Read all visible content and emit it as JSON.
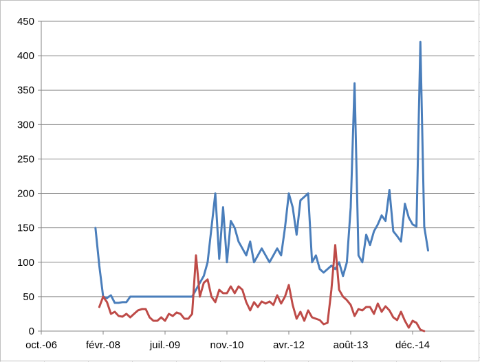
{
  "chart_data": {
    "type": "line",
    "title": "",
    "xlabel": "",
    "ylabel": "",
    "ylim": [
      0,
      450
    ],
    "y_ticks": [
      0,
      50,
      100,
      150,
      200,
      250,
      300,
      350,
      400,
      450
    ],
    "x_tick_labels": [
      "oct.-06",
      "févr.-08",
      "juil.-09",
      "nov.-10",
      "avr.-12",
      "août-13",
      "déc.-14"
    ],
    "x_tick_dates": [
      "2006-10",
      "2008-02",
      "2009-07",
      "2010-11",
      "2012-04",
      "2013-08",
      "2014-12"
    ],
    "grid": "horizontal",
    "legend": "none",
    "series": [
      {
        "color": "#4a7ebb",
        "points": [
          [
            "2007-12",
            150
          ],
          [
            "2008-01",
            95
          ],
          [
            "2008-02",
            50
          ],
          [
            "2008-03",
            48
          ],
          [
            "2008-04",
            52
          ],
          [
            "2008-05",
            41
          ],
          [
            "2008-06",
            41
          ],
          [
            "2008-07",
            42
          ],
          [
            "2008-08",
            42
          ],
          [
            "2008-09",
            50
          ],
          [
            "2008-10",
            50
          ],
          [
            "2008-11",
            50
          ],
          [
            "2008-12",
            50
          ],
          [
            "2009-01",
            50
          ],
          [
            "2009-02",
            50
          ],
          [
            "2009-03",
            50
          ],
          [
            "2009-04",
            50
          ],
          [
            "2009-05",
            50
          ],
          [
            "2009-06",
            50
          ],
          [
            "2009-07",
            50
          ],
          [
            "2009-08",
            50
          ],
          [
            "2009-09",
            50
          ],
          [
            "2009-10",
            50
          ],
          [
            "2009-11",
            50
          ],
          [
            "2009-12",
            50
          ],
          [
            "2010-01",
            50
          ],
          [
            "2010-02",
            60
          ],
          [
            "2010-03",
            70
          ],
          [
            "2010-04",
            80
          ],
          [
            "2010-05",
            100
          ],
          [
            "2010-06",
            150
          ],
          [
            "2010-07",
            200
          ],
          [
            "2010-08",
            105
          ],
          [
            "2010-09",
            180
          ],
          [
            "2010-10",
            100
          ],
          [
            "2010-11",
            160
          ],
          [
            "2010-12",
            150
          ],
          [
            "2011-01",
            130
          ],
          [
            "2011-02",
            120
          ],
          [
            "2011-03",
            110
          ],
          [
            "2011-04",
            130
          ],
          [
            "2011-05",
            100
          ],
          [
            "2011-06",
            110
          ],
          [
            "2011-07",
            120
          ],
          [
            "2011-08",
            110
          ],
          [
            "2011-09",
            100
          ],
          [
            "2011-10",
            110
          ],
          [
            "2011-11",
            120
          ],
          [
            "2011-12",
            110
          ],
          [
            "2012-01",
            150
          ],
          [
            "2012-02",
            200
          ],
          [
            "2012-03",
            180
          ],
          [
            "2012-04",
            140
          ],
          [
            "2012-05",
            190
          ],
          [
            "2012-06",
            195
          ],
          [
            "2012-07",
            200
          ],
          [
            "2012-08",
            100
          ],
          [
            "2012-09",
            110
          ],
          [
            "2012-10",
            90
          ],
          [
            "2012-11",
            85
          ],
          [
            "2012-12",
            90
          ],
          [
            "2013-01",
            95
          ],
          [
            "2013-02",
            90
          ],
          [
            "2013-03",
            100
          ],
          [
            "2013-04",
            80
          ],
          [
            "2013-05",
            100
          ],
          [
            "2013-06",
            180
          ],
          [
            "2013-07",
            360
          ],
          [
            "2013-08",
            110
          ],
          [
            "2013-09",
            100
          ],
          [
            "2013-10",
            140
          ],
          [
            "2013-11",
            125
          ],
          [
            "2013-12",
            145
          ],
          [
            "2014-01",
            155
          ],
          [
            "2014-02",
            168
          ],
          [
            "2014-03",
            160
          ],
          [
            "2014-04",
            205
          ],
          [
            "2014-05",
            145
          ],
          [
            "2014-06",
            138
          ],
          [
            "2014-07",
            130
          ],
          [
            "2014-08",
            185
          ],
          [
            "2014-09",
            165
          ],
          [
            "2014-10",
            155
          ],
          [
            "2014-11",
            152
          ],
          [
            "2014-12",
            420
          ],
          [
            "2015-01",
            152
          ],
          [
            "2015-02",
            117
          ]
        ]
      },
      {
        "color": "#be4b48",
        "points": [
          [
            "2008-01",
            35
          ],
          [
            "2008-02",
            50
          ],
          [
            "2008-03",
            42
          ],
          [
            "2008-04",
            25
          ],
          [
            "2008-05",
            28
          ],
          [
            "2008-06",
            22
          ],
          [
            "2008-07",
            21
          ],
          [
            "2008-08",
            25
          ],
          [
            "2008-09",
            20
          ],
          [
            "2008-10",
            25
          ],
          [
            "2008-11",
            30
          ],
          [
            "2008-12",
            32
          ],
          [
            "2009-01",
            32
          ],
          [
            "2009-02",
            20
          ],
          [
            "2009-03",
            15
          ],
          [
            "2009-04",
            15
          ],
          [
            "2009-05",
            20
          ],
          [
            "2009-06",
            15
          ],
          [
            "2009-07",
            25
          ],
          [
            "2009-08",
            22
          ],
          [
            "2009-09",
            27
          ],
          [
            "2009-10",
            25
          ],
          [
            "2009-11",
            18
          ],
          [
            "2009-12",
            18
          ],
          [
            "2010-01",
            25
          ],
          [
            "2010-02",
            110
          ],
          [
            "2010-03",
            50
          ],
          [
            "2010-04",
            70
          ],
          [
            "2010-05",
            75
          ],
          [
            "2010-06",
            50
          ],
          [
            "2010-07",
            42
          ],
          [
            "2010-08",
            60
          ],
          [
            "2010-09",
            55
          ],
          [
            "2010-10",
            55
          ],
          [
            "2010-11",
            65
          ],
          [
            "2010-12",
            55
          ],
          [
            "2011-01",
            65
          ],
          [
            "2011-02",
            60
          ],
          [
            "2011-03",
            42
          ],
          [
            "2011-04",
            30
          ],
          [
            "2011-05",
            42
          ],
          [
            "2011-06",
            35
          ],
          [
            "2011-07",
            43
          ],
          [
            "2011-08",
            40
          ],
          [
            "2011-09",
            43
          ],
          [
            "2011-10",
            38
          ],
          [
            "2011-11",
            52
          ],
          [
            "2011-12",
            40
          ],
          [
            "2012-01",
            50
          ],
          [
            "2012-02",
            67
          ],
          [
            "2012-03",
            38
          ],
          [
            "2012-04",
            18
          ],
          [
            "2012-05",
            28
          ],
          [
            "2012-06",
            15
          ],
          [
            "2012-07",
            30
          ],
          [
            "2012-08",
            20
          ],
          [
            "2012-09",
            18
          ],
          [
            "2012-10",
            16
          ],
          [
            "2012-11",
            10
          ],
          [
            "2012-12",
            12
          ],
          [
            "2013-01",
            60
          ],
          [
            "2013-02",
            125
          ],
          [
            "2013-03",
            60
          ],
          [
            "2013-04",
            50
          ],
          [
            "2013-05",
            45
          ],
          [
            "2013-06",
            38
          ],
          [
            "2013-07",
            22
          ],
          [
            "2013-08",
            32
          ],
          [
            "2013-09",
            30
          ],
          [
            "2013-10",
            35
          ],
          [
            "2013-11",
            35
          ],
          [
            "2013-12",
            25
          ],
          [
            "2014-01",
            40
          ],
          [
            "2014-02",
            28
          ],
          [
            "2014-03",
            36
          ],
          [
            "2014-04",
            30
          ],
          [
            "2014-05",
            20
          ],
          [
            "2014-06",
            16
          ],
          [
            "2014-07",
            28
          ],
          [
            "2014-08",
            15
          ],
          [
            "2014-09",
            5
          ],
          [
            "2014-10",
            15
          ],
          [
            "2014-11",
            12
          ],
          [
            "2014-12",
            2
          ],
          [
            "2015-01",
            0
          ]
        ]
      }
    ]
  }
}
